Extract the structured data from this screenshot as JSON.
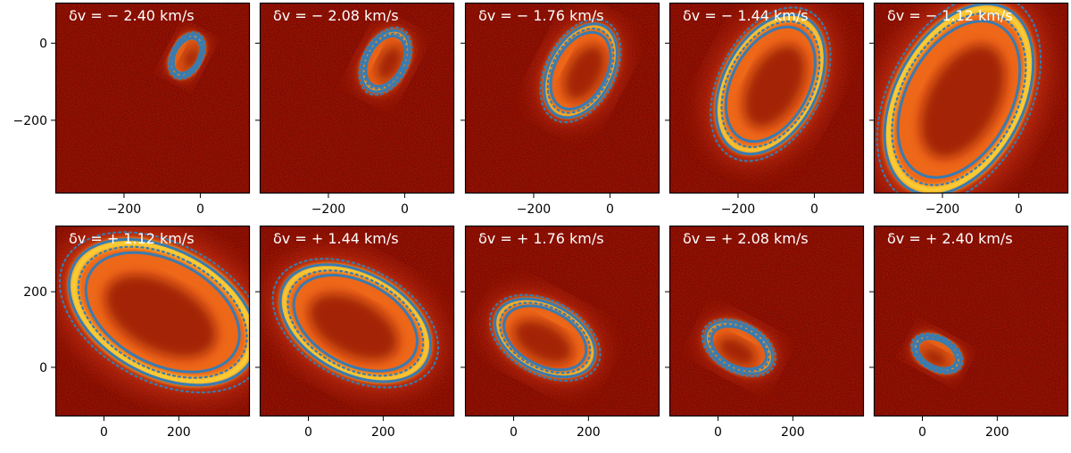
{
  "chart_data": {
    "type": "image-grid",
    "description_axes": "offset coordinates",
    "colormap": "hot",
    "curve_color": "#3a7bb0",
    "rows": [
      {
        "x_ticks": [
          "−200",
          "0"
        ],
        "x_tick_values": [
          -200,
          0
        ],
        "y_ticks": [
          "0",
          "−200"
        ],
        "y_tick_values": [
          0,
          -200
        ],
        "xlim": [
          -380,
          130
        ],
        "ylim": [
          -390,
          105
        ],
        "panels": [
          {
            "title": "δv = − 2.40 km/s",
            "dv": -2.4,
            "scale": 0.25
          },
          {
            "title": "δv = − 2.08 km/s",
            "dv": -2.08,
            "scale": 0.36
          },
          {
            "title": "δv = − 1.76 km/s",
            "dv": -1.76,
            "scale": 0.55
          },
          {
            "title": "δv = − 1.44 km/s",
            "dv": -1.44,
            "scale": 0.82
          },
          {
            "title": "δv = − 1.12 km/s",
            "dv": -1.12,
            "scale": 1.12
          }
        ]
      },
      {
        "x_ticks": [
          "0",
          "200"
        ],
        "x_tick_values": [
          0,
          200
        ],
        "y_ticks": [
          "200",
          "0"
        ],
        "y_tick_values": [
          200,
          0
        ],
        "xlim": [
          -130,
          390
        ],
        "ylim": [
          -130,
          375
        ],
        "panels": [
          {
            "title": "δv = + 1.12 km/s",
            "dv": 1.12,
            "scale": 1.12
          },
          {
            "title": "δv = + 1.44 km/s",
            "dv": 1.44,
            "scale": 0.9
          },
          {
            "title": "δv = + 1.76 km/s",
            "dv": 1.76,
            "scale": 0.6
          },
          {
            "title": "δv = + 2.08 km/s",
            "dv": 2.08,
            "scale": 0.4
          },
          {
            "title": "δv = + 2.40 km/s",
            "dv": 2.4,
            "scale": 0.28
          }
        ]
      }
    ]
  }
}
